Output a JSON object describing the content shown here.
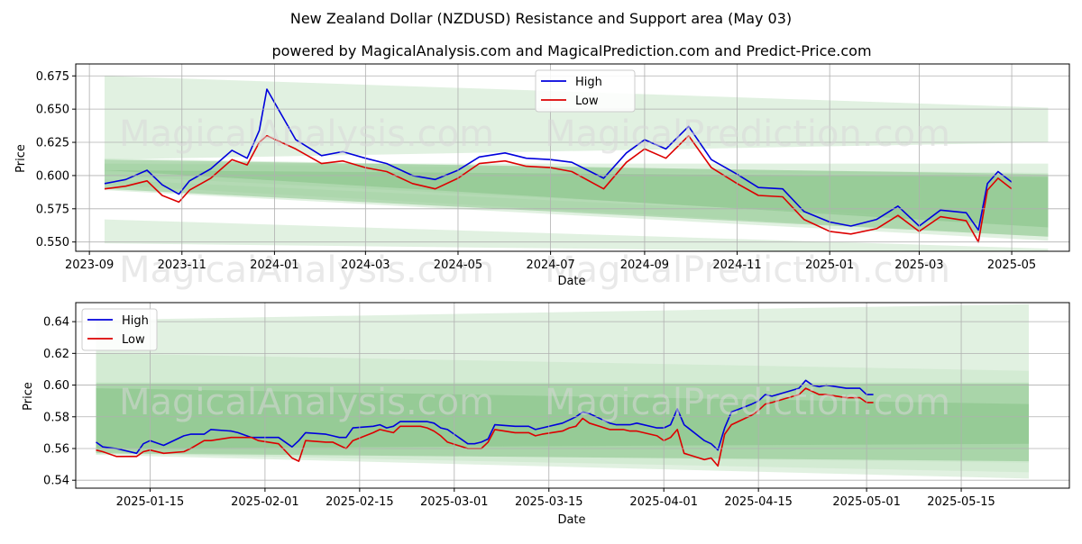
{
  "title": "New Zealand Dollar (NZDUSD) Resistance and Support area (May 03)",
  "subtitle": "powered by MagicalAnalysis.com and MagicalPrediction.com and Predict-Price.com",
  "watermark_left": "MagicalAnalysis.com",
  "watermark_right": "MagicalPrediction.com",
  "colors": {
    "high": "#0000dd",
    "low": "#dd0000",
    "band_light": "#c8e6c8",
    "band_dark": "#7fbf7f"
  },
  "chart_data": [
    {
      "type": "line",
      "xlabel": "Date",
      "ylabel": "Price",
      "ylim": [
        0.543,
        0.684
      ],
      "xlim": [
        "2023-08-23",
        "2025-06-08"
      ],
      "x_ticks": [
        "2023-09",
        "2023-11",
        "2024-01",
        "2024-03",
        "2024-05",
        "2024-07",
        "2024-09",
        "2024-11",
        "2025-01",
        "2025-03",
        "2025-05"
      ],
      "y_ticks": [
        0.55,
        0.575,
        0.6,
        0.625,
        0.65,
        0.675
      ],
      "y_tick_labels": [
        "0.550",
        "0.575",
        "0.600",
        "0.625",
        "0.650",
        "0.675"
      ],
      "grid": true,
      "legend_position": "top-center",
      "series": [
        {
          "name": "High",
          "color": "#0000dd",
          "x": [
            "2023-09-11",
            "2023-09-25",
            "2023-10-09",
            "2023-10-19",
            "2023-10-30",
            "2023-11-06",
            "2023-11-20",
            "2023-12-04",
            "2023-12-14",
            "2023-12-22",
            "2023-12-27",
            "2024-01-15",
            "2024-02-01",
            "2024-02-15",
            "2024-03-01",
            "2024-03-15",
            "2024-04-01",
            "2024-04-16",
            "2024-05-01",
            "2024-05-15",
            "2024-06-01",
            "2024-06-15",
            "2024-07-01",
            "2024-07-15",
            "2024-08-05",
            "2024-08-20",
            "2024-09-01",
            "2024-09-15",
            "2024-09-30",
            "2024-10-15",
            "2024-11-01",
            "2024-11-15",
            "2024-12-01",
            "2024-12-15",
            "2025-01-01",
            "2025-01-15",
            "2025-02-01",
            "2025-02-15",
            "2025-03-01",
            "2025-03-15",
            "2025-04-01",
            "2025-04-09",
            "2025-04-15",
            "2025-04-22",
            "2025-05-01"
          ],
          "values": [
            0.594,
            0.597,
            0.604,
            0.593,
            0.586,
            0.596,
            0.605,
            0.619,
            0.613,
            0.634,
            0.665,
            0.627,
            0.615,
            0.618,
            0.613,
            0.609,
            0.6,
            0.597,
            0.604,
            0.614,
            0.617,
            0.613,
            0.612,
            0.61,
            0.598,
            0.617,
            0.627,
            0.62,
            0.637,
            0.612,
            0.601,
            0.591,
            0.59,
            0.573,
            0.565,
            0.562,
            0.567,
            0.577,
            0.562,
            0.574,
            0.572,
            0.559,
            0.594,
            0.603,
            0.595
          ]
        },
        {
          "name": "Low",
          "color": "#dd0000",
          "x": [
            "2023-09-11",
            "2023-09-25",
            "2023-10-09",
            "2023-10-19",
            "2023-10-30",
            "2023-11-06",
            "2023-11-20",
            "2023-12-04",
            "2023-12-14",
            "2023-12-22",
            "2023-12-27",
            "2024-01-15",
            "2024-02-01",
            "2024-02-15",
            "2024-03-01",
            "2024-03-15",
            "2024-04-01",
            "2024-04-16",
            "2024-05-01",
            "2024-05-15",
            "2024-06-01",
            "2024-06-15",
            "2024-07-01",
            "2024-07-15",
            "2024-08-05",
            "2024-08-20",
            "2024-09-01",
            "2024-09-15",
            "2024-09-30",
            "2024-10-15",
            "2024-11-01",
            "2024-11-15",
            "2024-12-01",
            "2024-12-15",
            "2025-01-01",
            "2025-01-15",
            "2025-02-01",
            "2025-02-15",
            "2025-03-01",
            "2025-03-15",
            "2025-04-01",
            "2025-04-09",
            "2025-04-15",
            "2025-04-22",
            "2025-05-01"
          ],
          "values": [
            0.59,
            0.592,
            0.596,
            0.585,
            0.58,
            0.589,
            0.598,
            0.612,
            0.608,
            0.625,
            0.63,
            0.62,
            0.609,
            0.611,
            0.606,
            0.603,
            0.594,
            0.59,
            0.598,
            0.609,
            0.611,
            0.607,
            0.606,
            0.603,
            0.59,
            0.61,
            0.62,
            0.613,
            0.63,
            0.606,
            0.594,
            0.585,
            0.584,
            0.567,
            0.558,
            0.556,
            0.56,
            0.57,
            0.558,
            0.569,
            0.566,
            0.55,
            0.589,
            0.598,
            0.59
          ]
        }
      ]
    },
    {
      "type": "line",
      "xlabel": "Date",
      "ylabel": "Price",
      "ylim": [
        0.535,
        0.652
      ],
      "xlim": [
        "2025-01-04",
        "2025-05-31"
      ],
      "x_ticks": [
        "2025-01-15",
        "2025-02-01",
        "2025-02-15",
        "2025-03-01",
        "2025-03-15",
        "2025-04-01",
        "2025-04-15",
        "2025-05-01",
        "2025-05-15"
      ],
      "y_ticks": [
        0.54,
        0.56,
        0.58,
        0.6,
        0.62,
        0.64
      ],
      "y_tick_labels": [
        "0.54",
        "0.56",
        "0.58",
        "0.60",
        "0.62",
        "0.64"
      ],
      "grid": true,
      "legend_position": "top-left",
      "series": [
        {
          "name": "High",
          "color": "#0000dd",
          "x": [
            "2025-01-07",
            "2025-01-08",
            "2025-01-10",
            "2025-01-13",
            "2025-01-14",
            "2025-01-15",
            "2025-01-17",
            "2025-01-20",
            "2025-01-21",
            "2025-01-23",
            "2025-01-24",
            "2025-01-27",
            "2025-01-28",
            "2025-01-30",
            "2025-01-31",
            "2025-02-03",
            "2025-02-05",
            "2025-02-06",
            "2025-02-07",
            "2025-02-10",
            "2025-02-11",
            "2025-02-12",
            "2025-02-13",
            "2025-02-14",
            "2025-02-17",
            "2025-02-18",
            "2025-02-19",
            "2025-02-20",
            "2025-02-21",
            "2025-02-24",
            "2025-02-25",
            "2025-02-26",
            "2025-02-27",
            "2025-02-28",
            "2025-03-03",
            "2025-03-04",
            "2025-03-05",
            "2025-03-06",
            "2025-03-07",
            "2025-03-10",
            "2025-03-11",
            "2025-03-12",
            "2025-03-13",
            "2025-03-14",
            "2025-03-17",
            "2025-03-18",
            "2025-03-19",
            "2025-03-20",
            "2025-03-21",
            "2025-03-24",
            "2025-03-25",
            "2025-03-26",
            "2025-03-27",
            "2025-03-28",
            "2025-03-31",
            "2025-04-01",
            "2025-04-02",
            "2025-04-03",
            "2025-04-04",
            "2025-04-07",
            "2025-04-08",
            "2025-04-09",
            "2025-04-10",
            "2025-04-11",
            "2025-04-14",
            "2025-04-15",
            "2025-04-16",
            "2025-04-17",
            "2025-04-21",
            "2025-04-22",
            "2025-04-23",
            "2025-04-24",
            "2025-04-25",
            "2025-04-28",
            "2025-04-29",
            "2025-04-30",
            "2025-05-01",
            "2025-05-02"
          ],
          "values": [
            0.564,
            0.561,
            0.56,
            0.557,
            0.563,
            0.565,
            0.562,
            0.568,
            0.569,
            0.569,
            0.572,
            0.571,
            0.57,
            0.567,
            0.567,
            0.567,
            0.561,
            0.565,
            0.57,
            0.569,
            0.568,
            0.567,
            0.567,
            0.573,
            0.574,
            0.575,
            0.573,
            0.574,
            0.577,
            0.577,
            0.577,
            0.576,
            0.573,
            0.572,
            0.563,
            0.563,
            0.564,
            0.566,
            0.575,
            0.574,
            0.574,
            0.574,
            0.572,
            0.573,
            0.576,
            0.578,
            0.58,
            0.583,
            0.582,
            0.576,
            0.575,
            0.575,
            0.575,
            0.576,
            0.573,
            0.573,
            0.575,
            0.585,
            0.575,
            0.565,
            0.563,
            0.559,
            0.573,
            0.583,
            0.588,
            0.59,
            0.594,
            0.593,
            0.598,
            0.603,
            0.6,
            0.599,
            0.6,
            0.598,
            0.598,
            0.598,
            0.594,
            0.594
          ]
        },
        {
          "name": "Low",
          "color": "#dd0000",
          "x": [
            "2025-01-07",
            "2025-01-08",
            "2025-01-10",
            "2025-01-13",
            "2025-01-14",
            "2025-01-15",
            "2025-01-17",
            "2025-01-20",
            "2025-01-21",
            "2025-01-23",
            "2025-01-24",
            "2025-01-27",
            "2025-01-28",
            "2025-01-30",
            "2025-01-31",
            "2025-02-03",
            "2025-02-05",
            "2025-02-06",
            "2025-02-07",
            "2025-02-10",
            "2025-02-11",
            "2025-02-12",
            "2025-02-13",
            "2025-02-14",
            "2025-02-17",
            "2025-02-18",
            "2025-02-19",
            "2025-02-20",
            "2025-02-21",
            "2025-02-24",
            "2025-02-25",
            "2025-02-26",
            "2025-02-27",
            "2025-02-28",
            "2025-03-03",
            "2025-03-04",
            "2025-03-05",
            "2025-03-06",
            "2025-03-07",
            "2025-03-10",
            "2025-03-11",
            "2025-03-12",
            "2025-03-13",
            "2025-03-14",
            "2025-03-17",
            "2025-03-18",
            "2025-03-19",
            "2025-03-20",
            "2025-03-21",
            "2025-03-24",
            "2025-03-25",
            "2025-03-26",
            "2025-03-27",
            "2025-03-28",
            "2025-03-31",
            "2025-04-01",
            "2025-04-02",
            "2025-04-03",
            "2025-04-04",
            "2025-04-07",
            "2025-04-08",
            "2025-04-09",
            "2025-04-10",
            "2025-04-11",
            "2025-04-14",
            "2025-04-15",
            "2025-04-16",
            "2025-04-17",
            "2025-04-21",
            "2025-04-22",
            "2025-04-23",
            "2025-04-24",
            "2025-04-25",
            "2025-04-28",
            "2025-04-29",
            "2025-04-30",
            "2025-05-01",
            "2025-05-02"
          ],
          "values": [
            0.559,
            0.558,
            0.555,
            0.555,
            0.558,
            0.559,
            0.557,
            0.558,
            0.56,
            0.565,
            0.565,
            0.567,
            0.567,
            0.567,
            0.565,
            0.563,
            0.554,
            0.552,
            0.565,
            0.564,
            0.564,
            0.562,
            0.56,
            0.565,
            0.57,
            0.572,
            0.571,
            0.57,
            0.574,
            0.574,
            0.573,
            0.571,
            0.568,
            0.564,
            0.56,
            0.56,
            0.56,
            0.564,
            0.572,
            0.57,
            0.57,
            0.57,
            0.568,
            0.569,
            0.571,
            0.573,
            0.574,
            0.579,
            0.576,
            0.572,
            0.572,
            0.572,
            0.571,
            0.571,
            0.568,
            0.565,
            0.567,
            0.572,
            0.557,
            0.553,
            0.554,
            0.549,
            0.569,
            0.575,
            0.581,
            0.584,
            0.588,
            0.589,
            0.594,
            0.598,
            0.596,
            0.594,
            0.594,
            0.592,
            0.592,
            0.592,
            0.589,
            0.589
          ]
        }
      ]
    }
  ]
}
